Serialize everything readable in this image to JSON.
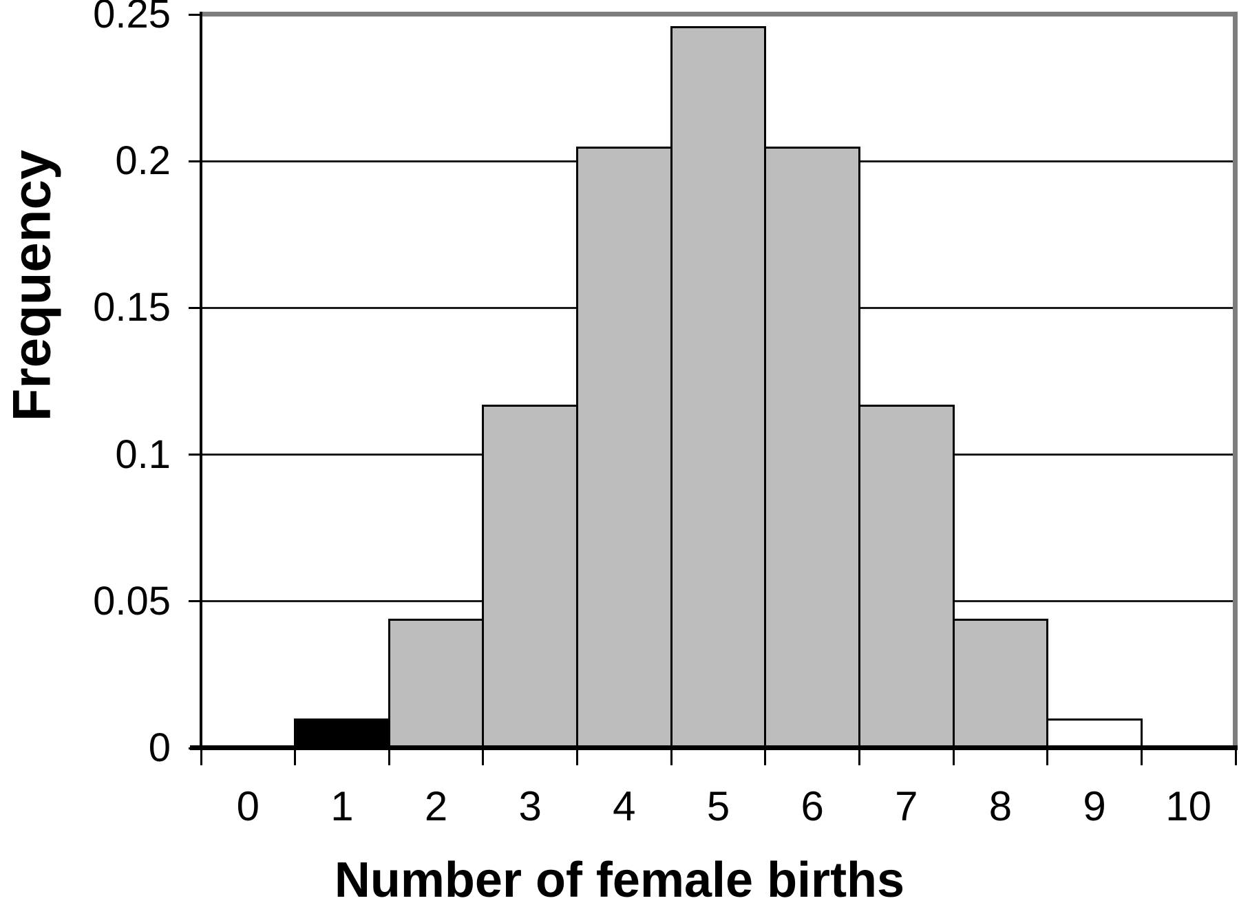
{
  "chart_data": {
    "type": "bar",
    "title": "",
    "xlabel": "Number of female births",
    "ylabel": "Frequency",
    "categories": [
      "0",
      "1",
      "2",
      "3",
      "4",
      "5",
      "6",
      "7",
      "8",
      "9",
      "10"
    ],
    "values": [
      0.001,
      0.01,
      0.044,
      0.117,
      0.205,
      0.246,
      0.205,
      0.117,
      0.044,
      0.01,
      0.001
    ],
    "bar_colors": [
      "#000000",
      "#000000",
      "#bdbdbd",
      "#bdbdbd",
      "#bdbdbd",
      "#bdbdbd",
      "#bdbdbd",
      "#bdbdbd",
      "#bdbdbd",
      "#ffffff",
      "#ffffff"
    ],
    "bar_outline_color": "#000000",
    "ylim": [
      0,
      0.25
    ],
    "yticks": [
      0,
      0.05,
      0.1,
      0.15,
      0.2,
      0.25
    ],
    "ytick_labels": [
      "0",
      "0.05",
      "0.1",
      "0.15",
      "0.2",
      "0.25"
    ],
    "grid": true,
    "legend": false,
    "bar_gap": 0
  },
  "colors": {
    "background": "#ffffff",
    "bar_fill_gray": "#bdbdbd",
    "bar_fill_black": "#000000",
    "bar_fill_white": "#ffffff",
    "plot_border_gray": "#7d7d7d",
    "axis_black": "#000000"
  }
}
